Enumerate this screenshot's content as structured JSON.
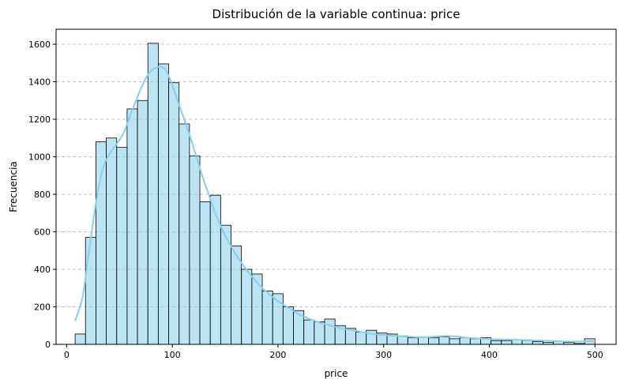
{
  "chart_data": {
    "type": "bar",
    "subtype": "histogram_with_kde",
    "title": "Distribución de la variable continua: price",
    "xlabel": "price",
    "ylabel": "Frecuencia",
    "xlim": [
      -10,
      520
    ],
    "ylim": [
      0,
      1680
    ],
    "x_ticks": [
      0,
      100,
      200,
      300,
      400,
      500
    ],
    "y_ticks": [
      0,
      200,
      400,
      600,
      800,
      1000,
      1200,
      1400,
      1600
    ],
    "grid": "y-dashed",
    "bar_color": "#87ceeb",
    "bar_opacity": 0.55,
    "kde_color": "#87ceeb",
    "bins": [
      {
        "x0": 8.0,
        "x1": 17.84,
        "value": 55
      },
      {
        "x0": 17.84,
        "x1": 27.68,
        "value": 570
      },
      {
        "x0": 27.68,
        "x1": 37.52,
        "value": 1080
      },
      {
        "x0": 37.52,
        "x1": 47.36,
        "value": 1100
      },
      {
        "x0": 47.36,
        "x1": 57.2,
        "value": 1050
      },
      {
        "x0": 57.2,
        "x1": 67.04,
        "value": 1255
      },
      {
        "x0": 67.04,
        "x1": 76.88,
        "value": 1300
      },
      {
        "x0": 76.88,
        "x1": 86.72,
        "value": 1605
      },
      {
        "x0": 86.72,
        "x1": 96.56,
        "value": 1495
      },
      {
        "x0": 96.56,
        "x1": 106.4,
        "value": 1395
      },
      {
        "x0": 106.4,
        "x1": 116.24,
        "value": 1175
      },
      {
        "x0": 116.24,
        "x1": 126.08,
        "value": 1005
      },
      {
        "x0": 126.08,
        "x1": 135.92,
        "value": 760
      },
      {
        "x0": 135.92,
        "x1": 145.76,
        "value": 795
      },
      {
        "x0": 145.76,
        "x1": 155.6,
        "value": 635
      },
      {
        "x0": 155.6,
        "x1": 165.44,
        "value": 525
      },
      {
        "x0": 165.44,
        "x1": 175.28,
        "value": 400
      },
      {
        "x0": 175.28,
        "x1": 185.12,
        "value": 375
      },
      {
        "x0": 185.12,
        "x1": 194.96,
        "value": 285
      },
      {
        "x0": 194.96,
        "x1": 204.8,
        "value": 270
      },
      {
        "x0": 204.8,
        "x1": 214.64,
        "value": 200
      },
      {
        "x0": 214.64,
        "x1": 224.48,
        "value": 180
      },
      {
        "x0": 224.48,
        "x1": 234.32,
        "value": 130
      },
      {
        "x0": 234.32,
        "x1": 244.16,
        "value": 120
      },
      {
        "x0": 244.16,
        "x1": 254.0,
        "value": 135
      },
      {
        "x0": 254.0,
        "x1": 263.84,
        "value": 100
      },
      {
        "x0": 263.84,
        "x1": 273.68,
        "value": 85
      },
      {
        "x0": 273.68,
        "x1": 283.52,
        "value": 65
      },
      {
        "x0": 283.52,
        "x1": 293.36,
        "value": 75
      },
      {
        "x0": 293.36,
        "x1": 303.2,
        "value": 60
      },
      {
        "x0": 303.2,
        "x1": 313.04,
        "value": 55
      },
      {
        "x0": 313.04,
        "x1": 322.88,
        "value": 45
      },
      {
        "x0": 322.88,
        "x1": 332.72,
        "value": 35
      },
      {
        "x0": 332.72,
        "x1": 342.56,
        "value": 40
      },
      {
        "x0": 342.56,
        "x1": 352.4,
        "value": 35
      },
      {
        "x0": 352.4,
        "x1": 362.24,
        "value": 40
      },
      {
        "x0": 362.24,
        "x1": 372.08,
        "value": 30
      },
      {
        "x0": 372.08,
        "x1": 381.92,
        "value": 35
      },
      {
        "x0": 381.92,
        "x1": 391.76,
        "value": 30
      },
      {
        "x0": 391.76,
        "x1": 401.6,
        "value": 35
      },
      {
        "x0": 401.6,
        "x1": 411.44,
        "value": 20
      },
      {
        "x0": 411.44,
        "x1": 421.28,
        "value": 20
      },
      {
        "x0": 421.28,
        "x1": 431.12,
        "value": 25
      },
      {
        "x0": 431.12,
        "x1": 440.96,
        "value": 20
      },
      {
        "x0": 440.96,
        "x1": 450.8,
        "value": 15
      },
      {
        "x0": 450.8,
        "x1": 460.64,
        "value": 10
      },
      {
        "x0": 460.64,
        "x1": 470.48,
        "value": 15
      },
      {
        "x0": 470.48,
        "x1": 480.32,
        "value": 10
      },
      {
        "x0": 480.32,
        "x1": 490.16,
        "value": 5
      },
      {
        "x0": 490.16,
        "x1": 500.0,
        "value": 30
      }
    ],
    "kde": {
      "x": [
        8,
        15,
        20,
        25,
        30,
        35,
        40,
        45,
        50,
        55,
        60,
        65,
        70,
        75,
        80,
        85,
        90,
        95,
        100,
        105,
        110,
        115,
        120,
        125,
        130,
        135,
        140,
        145,
        150,
        160,
        170,
        180,
        190,
        200,
        210,
        220,
        230,
        240,
        250,
        260,
        270,
        280,
        290,
        300,
        320,
        340,
        360,
        380,
        400,
        420,
        440,
        460,
        480,
        500
      ],
      "y": [
        125,
        250,
        450,
        650,
        830,
        950,
        1010,
        1050,
        1090,
        1140,
        1220,
        1290,
        1360,
        1420,
        1460,
        1475,
        1480,
        1450,
        1380,
        1300,
        1220,
        1140,
        1050,
        960,
        870,
        790,
        710,
        640,
        580,
        480,
        400,
        330,
        275,
        230,
        195,
        160,
        135,
        115,
        100,
        85,
        75,
        65,
        55,
        50,
        42,
        38,
        45,
        35,
        28,
        25,
        22,
        18,
        15,
        18
      ]
    }
  }
}
